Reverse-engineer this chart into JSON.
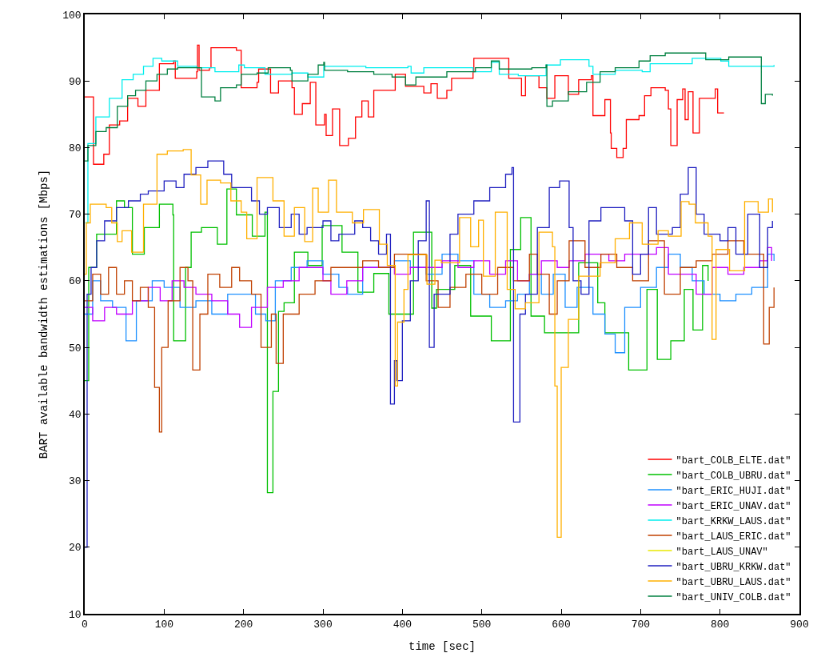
{
  "chart_data": {
    "type": "step",
    "xlabel": "time [sec]",
    "ylabel": "BART available bandwidth estimations [Mbps]",
    "xlim": [
      0,
      900
    ],
    "ylim": [
      10,
      100
    ],
    "xticks": [
      0,
      100,
      200,
      300,
      400,
      500,
      600,
      700,
      800,
      900
    ],
    "yticks": [
      10,
      20,
      30,
      40,
      50,
      60,
      70,
      80,
      90,
      100
    ],
    "legend": "bottom right",
    "marker": "none",
    "line_style": "solid",
    "series": [
      {
        "name": "\"bart_COLB_ELTE.dat\"",
        "color": "#ff0000",
        "x": [
          0,
          11,
          24,
          31,
          44,
          54,
          67,
          77,
          94,
          112,
          114,
          141,
          142,
          144,
          157,
          159,
          191,
          197,
          217,
          219,
          232,
          234,
          244,
          261,
          264,
          274,
          284,
          291,
          302,
          304,
          312,
          321,
          332,
          341,
          349,
          357,
          364,
          391,
          404,
          427,
          436,
          444,
          456,
          462,
          489,
          490,
          532,
          534,
          550,
          555,
          572,
          582,
          592,
          609,
          622,
          638,
          640,
          655,
          662,
          663,
          670,
          678,
          682,
          698,
          705,
          713,
          731,
          735,
          738,
          746,
          753,
          756,
          760,
          766,
          774,
          794,
          797,
          805
        ],
        "values": [
          87.6,
          77.5,
          79,
          83.4,
          84,
          87.4,
          86.2,
          88.6,
          92.6,
          93,
          90.4,
          91.4,
          95.4,
          91.6,
          92,
          95,
          94.6,
          89,
          89.8,
          91.8,
          91.8,
          88.2,
          90,
          89,
          85,
          86.6,
          89.8,
          83.4,
          85,
          81.8,
          85.8,
          80.3,
          81.4,
          84.6,
          87,
          84.6,
          88.6,
          91,
          89.2,
          88.2,
          89.6,
          87.4,
          88.6,
          90.4,
          91.4,
          93.4,
          93.4,
          90.4,
          87.8,
          90.8,
          89,
          87.4,
          90.8,
          88,
          90.2,
          90.8,
          84.8,
          87.2,
          82.2,
          79.9,
          78.5,
          79.9,
          84.2,
          84.8,
          87.8,
          89,
          88.6,
          85.8,
          80.3,
          87.2,
          88.8,
          84.2,
          88.4,
          82.2,
          87.4,
          88.8,
          85.2,
          85.2
        ]
      },
      {
        "name": "\"bart_COLB_UBRU.dat\"",
        "color": "#00c000",
        "x": [
          0,
          5,
          15,
          40,
          50,
          60,
          75,
          94,
          111,
          112,
          127,
          134,
          147,
          167,
          179,
          191,
          211,
          227,
          230,
          237,
          244,
          251,
          264,
          281,
          299,
          324,
          344,
          364,
          383,
          414,
          437,
          443,
          466,
          486,
          512,
          536,
          549,
          562,
          579,
          622,
          646,
          655,
          685,
          708,
          721,
          738,
          755,
          766,
          778,
          785
        ],
        "values": [
          45,
          62,
          67,
          72,
          71,
          64,
          68,
          71.5,
          69.9,
          51,
          62,
          67.3,
          68,
          65.5,
          73.8,
          69.9,
          66.7,
          70.3,
          28.2,
          43.4,
          55.4,
          56.7,
          64.3,
          62.3,
          68.3,
          64.3,
          58.3,
          61.1,
          55,
          67.3,
          55.9,
          58.7,
          62.3,
          54.7,
          51,
          64.7,
          69.5,
          54.7,
          52.2,
          62.7,
          56.7,
          52.2,
          46.6,
          58.7,
          48.2,
          51,
          58.7,
          52.6,
          62.3,
          60
        ]
      },
      {
        "name": "\"bart_ERIC_HUJI.dat\"",
        "color": "#1e90ff",
        "x": [
          0,
          10,
          20,
          35,
          52,
          65,
          85,
          100,
          120,
          140,
          160,
          180,
          200,
          215,
          228,
          240,
          260,
          280,
          300,
          320,
          331,
          350,
          370,
          390,
          410,
          430,
          450,
          470,
          490,
          510,
          530,
          545,
          560,
          575,
          590,
          605,
          620,
          640,
          655,
          668,
          680,
          700,
          720,
          735,
          750,
          765,
          780,
          800,
          820,
          840,
          855,
          860,
          868
        ],
        "values": [
          55,
          60,
          57,
          56,
          51,
          57,
          60,
          59,
          56,
          57,
          55,
          58,
          58,
          55,
          54,
          60,
          62,
          63,
          61,
          59,
          58,
          62,
          62,
          63,
          62,
          61,
          64,
          63,
          58,
          56,
          57,
          58,
          61,
          58,
          61,
          56,
          59,
          55,
          52,
          49.2,
          56,
          59,
          62,
          64,
          62,
          60,
          58,
          57,
          58,
          59,
          59,
          64,
          63
        ]
      },
      {
        "name": "\"bart_ERIC_UNAV.dat\"",
        "color": "#c000ff",
        "x": [
          0,
          10,
          25,
          40,
          60,
          80,
          95,
          110,
          125,
          140,
          160,
          180,
          195,
          210,
          230,
          250,
          270,
          290,
          300,
          310,
          330,
          350,
          370,
          390,
          410,
          430,
          450,
          470,
          490,
          510,
          530,
          545,
          560,
          575,
          595,
          610,
          630,
          660,
          680,
          700,
          720,
          735,
          750,
          770,
          790,
          810,
          830,
          850,
          860,
          865
        ],
        "values": [
          56,
          54,
          56,
          55,
          57,
          59,
          57,
          60,
          59,
          58,
          57,
          55,
          53,
          56,
          59,
          60,
          62,
          62,
          60,
          58,
          60,
          62,
          62,
          61,
          62,
          62,
          63,
          62,
          63,
          61,
          63,
          60,
          61,
          63,
          62,
          63,
          64,
          63,
          64,
          64,
          65,
          61,
          61,
          58,
          62,
          61,
          62,
          63,
          65,
          63
        ]
      },
      {
        "name": "\"bart_KRKW_LAUS.dat\"",
        "color": "#00eeee",
        "x": [
          0.7,
          4,
          14,
          31,
          47,
          61,
          74,
          86,
          97,
          117,
          141,
          164,
          194,
          201,
          227,
          261,
          281,
          301,
          354,
          407,
          411,
          427,
          436,
          489,
          512,
          522,
          546,
          581,
          599,
          635,
          640,
          668,
          702,
          712,
          765,
          801,
          811,
          868
        ],
        "values": [
          68.7,
          80.6,
          84.6,
          87.4,
          90.2,
          91,
          92.2,
          93.4,
          93,
          92.2,
          92,
          91.4,
          92.4,
          92,
          91,
          91.2,
          90.6,
          92.2,
          92,
          92.2,
          91.2,
          92,
          92,
          91.4,
          92.8,
          91,
          90.8,
          92.4,
          93.2,
          92.2,
          91,
          91.6,
          91.4,
          92.6,
          93.4,
          93,
          92.2,
          92.4
        ]
      },
      {
        "name": "\"bart_LAUS_ERIC.dat\"",
        "color": "#c04000",
        "x": [
          0,
          10,
          20,
          30,
          40,
          50,
          60,
          70,
          80,
          88,
          94,
          97,
          105,
          120,
          130,
          136,
          145,
          155,
          170,
          185,
          195,
          210,
          222,
          235,
          241,
          250,
          270,
          290,
          310,
          330,
          350,
          370,
          390,
          410,
          430,
          445,
          460,
          480,
          500,
          520,
          540,
          560,
          570,
          585,
          595,
          610,
          630,
          650,
          670,
          690,
          710,
          730,
          750,
          770,
          790,
          810,
          830,
          850,
          855,
          862,
          868
        ],
        "values": [
          57,
          61,
          58,
          62,
          58,
          60,
          57,
          59,
          56,
          44,
          37.3,
          50,
          57,
          62,
          60,
          46.6,
          55,
          61,
          59,
          62,
          60,
          58,
          50,
          55,
          47.6,
          55,
          58,
          60,
          62,
          62,
          63,
          62,
          64,
          64,
          60,
          56,
          59,
          61,
          58,
          62,
          60,
          64,
          61,
          55,
          60,
          66,
          62,
          64,
          62,
          60,
          66,
          58,
          62,
          63,
          64,
          66,
          64,
          64,
          50.5,
          56,
          59
        ]
      },
      {
        "name": "\"bart_LAUS_UNAV\"",
        "color": "#e8e800"
      },
      {
        "name": "\"bart_UBRU_KRKW.dat\"",
        "color": "#2020c0",
        "x": [
          0,
          3,
          8,
          15,
          25,
          40,
          55,
          70,
          80,
          100,
          115,
          125,
          140,
          155,
          175,
          185,
          200,
          210,
          220,
          230,
          245,
          260,
          270,
          280,
          300,
          310,
          320,
          340,
          350,
          360,
          370,
          380,
          385,
          390,
          393,
          400,
          410,
          420,
          430,
          434,
          440,
          460,
          470,
          490,
          510,
          530,
          538,
          540,
          548,
          555,
          570,
          585,
          598,
          610,
          615,
          625,
          635,
          650,
          665,
          680,
          690,
          700,
          710,
          720,
          740,
          750,
          760,
          770,
          780,
          800,
          810,
          820,
          835,
          850,
          860,
          866
        ],
        "values": [
          20,
          58,
          62,
          66,
          69,
          71,
          72,
          73,
          73.5,
          75,
          74,
          76,
          77,
          78,
          76,
          74,
          74,
          72,
          70,
          71,
          68,
          70,
          67,
          68,
          69,
          66,
          67,
          69,
          68,
          66,
          64,
          67,
          41.5,
          48,
          45,
          54,
          60,
          66,
          72,
          50,
          58,
          67,
          70,
          72,
          74,
          76,
          77,
          38.8,
          55,
          58,
          68,
          74,
          75,
          68,
          60,
          58,
          69,
          71,
          71,
          69,
          61,
          64,
          71,
          67,
          68,
          73,
          77,
          70,
          67,
          66,
          68,
          64,
          70,
          62,
          68,
          69
        ]
      },
      {
        "name": "\"bart_UBRU_LAUS.dat\"",
        "color": "#ffb000",
        "x": [
          0,
          2,
          7,
          27,
          34,
          41,
          47,
          59,
          74,
          91,
          104,
          124,
          134,
          146,
          154,
          171,
          184,
          197,
          204,
          217,
          237,
          251,
          264,
          277,
          287,
          294,
          307,
          317,
          337,
          351,
          371,
          381,
          391,
          394,
          402,
          407,
          431,
          441,
          449,
          472,
          486,
          496,
          502,
          517,
          532,
          542,
          555,
          572,
          589,
          592,
          595,
          600,
          609,
          622,
          649,
          668,
          686,
          702,
          722,
          735,
          751,
          761,
          769,
          785,
          790,
          795,
          812,
          831,
          848,
          861,
          866
        ],
        "values": [
          61,
          68.7,
          71.5,
          71,
          68.7,
          65.9,
          67.5,
          64.3,
          71.5,
          79,
          79.5,
          79.7,
          75.9,
          71.5,
          75.1,
          74.7,
          72,
          70.3,
          66.3,
          75.5,
          72,
          66.7,
          71,
          65.9,
          73.9,
          70.3,
          75.1,
          70.3,
          68.7,
          70.7,
          65.5,
          62.3,
          44.2,
          53.8,
          58.7,
          63.9,
          59.5,
          63.1,
          62.7,
          69.5,
          65.1,
          69.1,
          60.7,
          70.3,
          58.7,
          55.8,
          56.7,
          67.3,
          65.1,
          44.2,
          21.5,
          47,
          54.2,
          60.7,
          62.7,
          66.3,
          68.7,
          65.5,
          67.5,
          66.7,
          71.9,
          71.5,
          68.7,
          66.7,
          51.2,
          64.7,
          61.5,
          71.9,
          70.3,
          72.3,
          70.3
        ]
      },
      {
        "name": "\"bart_UNIV_COLB.dat\"",
        "color": "#008040",
        "x": [
          0,
          4,
          14,
          27,
          41,
          54,
          64,
          77,
          91,
          104,
          117,
          142,
          147,
          164,
          171,
          191,
          197,
          217,
          231,
          259,
          261,
          281,
          294,
          301,
          302,
          331,
          364,
          387,
          404,
          417,
          456,
          492,
          512,
          522,
          563,
          581,
          582,
          589,
          609,
          632,
          649,
          668,
          698,
          712,
          731,
          780,
          782,
          808,
          811,
          851,
          852,
          857,
          866
        ],
        "values": [
          78,
          80.3,
          82.4,
          83,
          86.2,
          87.8,
          88.6,
          90,
          91,
          91.8,
          92,
          92,
          87.6,
          87,
          89,
          89.4,
          91,
          91.2,
          92,
          91.6,
          90,
          91,
          92.4,
          92.8,
          91.6,
          91.4,
          91,
          90.6,
          89.4,
          90.6,
          91.4,
          92,
          93,
          91.8,
          92,
          92.4,
          86.2,
          87,
          88.4,
          89.8,
          91.4,
          92,
          93,
          93.8,
          94.2,
          94.2,
          93.2,
          93.2,
          93.6,
          93.6,
          86.6,
          88,
          87.8
        ]
      }
    ]
  }
}
